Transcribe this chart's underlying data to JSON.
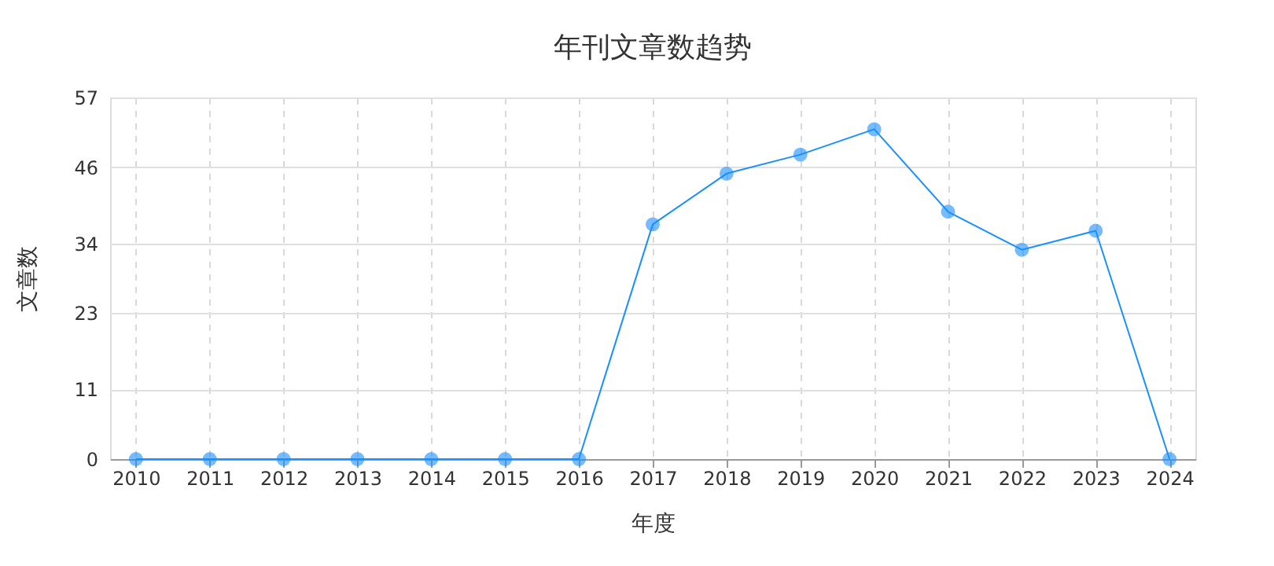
{
  "chart_data": {
    "type": "line",
    "title": "年刊文章数趋势",
    "xlabel": "年度",
    "ylabel": "文章数",
    "categories": [
      "2010",
      "2011",
      "2012",
      "2013",
      "2014",
      "2015",
      "2016",
      "2017",
      "2018",
      "2019",
      "2020",
      "2021",
      "2022",
      "2023",
      "2024"
    ],
    "series": [
      {
        "color": "#1890ff",
        "values": [
          0,
          0,
          0,
          0,
          0,
          0,
          0,
          37,
          45,
          48,
          52,
          39,
          33,
          36,
          0
        ]
      }
    ],
    "ylim": [
      0,
      57
    ],
    "yticks": [
      0,
      11,
      23,
      34,
      46,
      57
    ],
    "grid": true,
    "marker": "circle",
    "line_style": "solid"
  }
}
